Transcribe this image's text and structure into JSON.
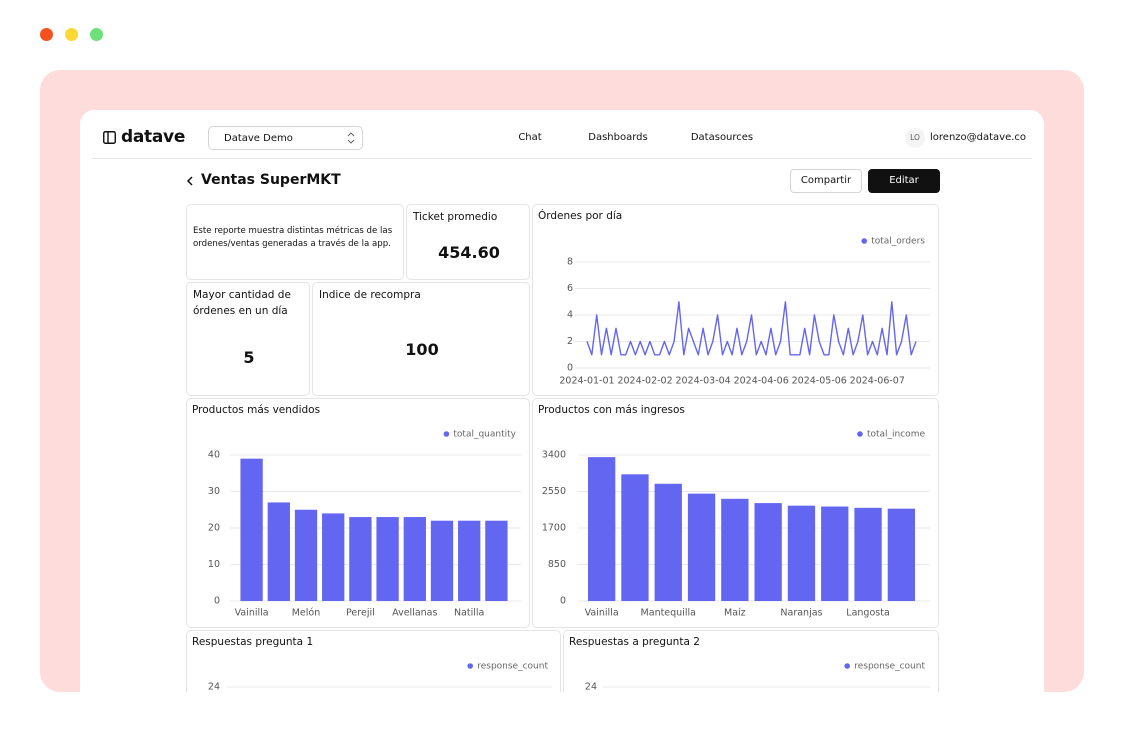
{
  "header": {
    "brand": "datave",
    "workspace": "Datave Demo",
    "nav": [
      "Chat",
      "Dashboards",
      "Datasources"
    ],
    "user_initials": "LO",
    "user_email": "lorenzo@datave.co"
  },
  "report": {
    "title": "Ventas SuperMKT",
    "actions": [
      "Compartir",
      "Editar"
    ],
    "description": "Este reporte muestra distintas métricas de las ordenes/ventas generadas a través de la app.",
    "metrics": [
      {
        "label": "Ticket promedio",
        "value": 454.6,
        "value_label": "454.60"
      },
      {
        "label": "Mayor cantidad de órdenes en un día",
        "value": 5
      },
      {
        "label": "Indice de recompra",
        "value": 100
      }
    ]
  },
  "chart_data": [
    {
      "type": "line",
      "title": "Órdenes por día",
      "categories": [
        "2024-01-01",
        null,
        null,
        null,
        null,
        null,
        null,
        null,
        null,
        null,
        null,
        null,
        "2024-02-02",
        null,
        null,
        null,
        null,
        null,
        null,
        null,
        null,
        null,
        null,
        null,
        "2024-03-04",
        null,
        null,
        null,
        null,
        null,
        null,
        null,
        null,
        null,
        null,
        null,
        "2024-04-06",
        null,
        null,
        null,
        null,
        null,
        null,
        null,
        null,
        null,
        null,
        null,
        "2024-05-06",
        null,
        null,
        null,
        null,
        null,
        null,
        null,
        null,
        null,
        null,
        null,
        "2024-06-07",
        null,
        null,
        null,
        null,
        null,
        null,
        null,
        null
      ],
      "series": [
        {
          "name": "total_orders",
          "color": "#6366f1",
          "values": [
            2,
            1,
            4,
            1,
            3,
            1,
            3,
            1,
            1,
            2,
            1,
            2,
            1,
            2,
            1,
            1,
            2,
            1,
            2,
            5,
            1,
            3,
            2,
            1,
            3,
            1,
            2,
            4,
            1,
            2,
            1,
            3,
            1,
            2,
            4,
            1,
            2,
            1,
            3,
            1,
            2,
            5,
            1,
            1,
            1,
            3,
            1,
            4,
            2,
            1,
            1,
            4,
            2,
            1,
            3,
            1,
            2,
            4,
            1,
            2,
            1,
            3,
            1,
            5,
            1,
            2,
            4,
            1,
            2
          ]
        }
      ],
      "ylim": [
        0,
        8
      ],
      "yticks": [
        0,
        2,
        4,
        6,
        8
      ],
      "grid": true
    },
    {
      "type": "bar",
      "title": "Productos más vendidos",
      "categories": [
        "Vainilla",
        null,
        "Melón",
        null,
        "Perejil",
        null,
        "Avellanas",
        null,
        "Natilla",
        null
      ],
      "series": [
        {
          "name": "total_quantity",
          "color": "#6366f1",
          "values": [
            39,
            27,
            25,
            24,
            23,
            23,
            23,
            22,
            22,
            22
          ]
        }
      ],
      "ylim": [
        0,
        40
      ],
      "yticks": [
        0,
        10,
        20,
        30,
        40
      ],
      "grid": true
    },
    {
      "type": "bar",
      "title": "Productos con más ingresos",
      "categories": [
        "Vainilla",
        null,
        "Mantequilla",
        null,
        "Maíz",
        null,
        "Naranjas",
        null,
        "Langosta",
        null
      ],
      "series": [
        {
          "name": "total_income",
          "color": "#6366f1",
          "values": [
            3350,
            2950,
            2730,
            2500,
            2380,
            2280,
            2220,
            2200,
            2170,
            2150
          ]
        }
      ],
      "ylim": [
        0,
        3400
      ],
      "yticks": [
        0,
        850,
        1700,
        2550,
        3400
      ],
      "grid": true
    },
    {
      "type": "bar",
      "title": "Respuestas pregunta 1",
      "series": [
        {
          "name": "response_count",
          "color": "#6366f1"
        }
      ],
      "yticks": [
        24
      ],
      "grid": true
    },
    {
      "type": "bar",
      "title": "Respuestas a pregunta 2",
      "series": [
        {
          "name": "response_count",
          "color": "#6366f1"
        }
      ],
      "yticks": [
        24
      ],
      "grid": true
    }
  ]
}
